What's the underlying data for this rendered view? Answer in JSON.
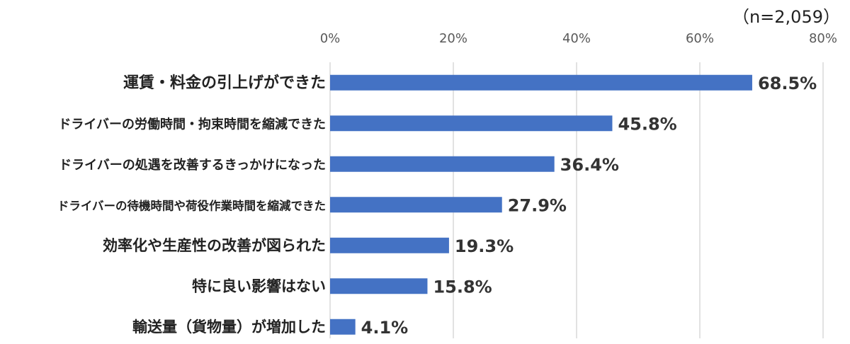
{
  "sample_note": "（n=2,059）",
  "colors": {
    "bar": "#4472C4",
    "grid": "#D9D9D9",
    "text": "#222222",
    "tick": "#595959"
  },
  "chart_data": {
    "type": "bar",
    "orientation": "horizontal",
    "categories": [
      "運賃・料金の引上げができた",
      "ドライバーの労働時間・拘束時間を縮減できた",
      "ドライバーの処遇を改善するきっかけになった",
      "ドライバーの待機時間や荷役作業時間を縮減できた",
      "効率化や生産性の改善が図られた",
      "特に良い影響はない",
      "輸送量（貨物量）が増加した"
    ],
    "values": [
      68.5,
      45.8,
      36.4,
      27.9,
      19.3,
      15.8,
      4.1
    ],
    "value_labels": [
      "68.5%",
      "45.8%",
      "36.4%",
      "27.9%",
      "19.3%",
      "15.8%",
      "4.1%"
    ],
    "x_ticks": [
      "0%",
      "20%",
      "40%",
      "60%",
      "80%"
    ],
    "x_tick_values": [
      0,
      20,
      40,
      60,
      80
    ],
    "xlim": [
      0,
      80
    ],
    "grid": true,
    "axis_position": "top"
  }
}
